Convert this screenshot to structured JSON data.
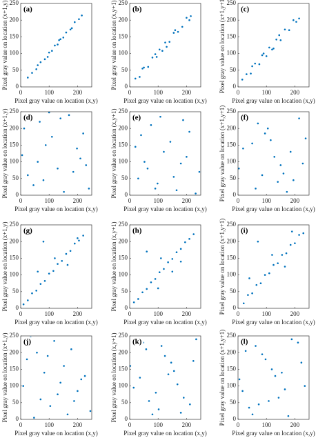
{
  "chart_data": [
    {
      "type": "scatter",
      "label": "(a)",
      "xlabel": "Pixel gray value on location (x,y)",
      "ylabel": "Pixel gray value on location (x+1,y)",
      "color": "#0072bd",
      "xlim": [
        0,
        250
      ],
      "ylim": [
        0,
        250
      ],
      "xticks": [
        0,
        100,
        200
      ],
      "yticks": [
        0,
        50,
        100,
        150,
        200,
        250
      ],
      "x": [
        25,
        40,
        55,
        70,
        85,
        100,
        110,
        120,
        130,
        140,
        150,
        160,
        175,
        190,
        205,
        215,
        60,
        95,
        135,
        180
      ],
      "values": [
        28,
        42,
        53,
        74,
        83,
        103,
        108,
        124,
        127,
        143,
        148,
        163,
        172,
        194,
        203,
        214,
        65,
        90,
        140,
        176
      ]
    },
    {
      "type": "scatter",
      "label": "(b)",
      "xlabel": "Pixel gray value on location (x,y)",
      "ylabel": "Pixel gray value on location (x,y+1)",
      "color": "#0072bd",
      "xlim": [
        0,
        250
      ],
      "ylim": [
        0,
        250
      ],
      "xticks": [
        0,
        100,
        200
      ],
      "yticks": [
        0,
        50,
        100,
        150,
        200,
        250
      ],
      "x": [
        20,
        35,
        50,
        65,
        80,
        95,
        105,
        115,
        125,
        140,
        155,
        170,
        185,
        200,
        215,
        45,
        90,
        130,
        160,
        210
      ],
      "values": [
        25,
        30,
        58,
        60,
        88,
        90,
        112,
        108,
        133,
        135,
        162,
        165,
        180,
        207,
        212,
        55,
        98,
        120,
        170,
        200
      ]
    },
    {
      "type": "scatter",
      "label": "(c)",
      "xlabel": "Pixel gray value on location (x,y)",
      "ylabel": "Pixel gray value on location (x+1,y+1)",
      "color": "#0072bd",
      "xlim": [
        0,
        250
      ],
      "ylim": [
        0,
        250
      ],
      "xticks": [
        0,
        100,
        200
      ],
      "yticks": [
        0,
        50,
        100,
        150,
        200,
        250
      ],
      "x": [
        15,
        30,
        45,
        60,
        75,
        90,
        100,
        110,
        120,
        135,
        150,
        165,
        180,
        195,
        215,
        50,
        85,
        125,
        145,
        205
      ],
      "values": [
        22,
        38,
        40,
        70,
        68,
        100,
        92,
        118,
        112,
        142,
        140,
        172,
        170,
        200,
        205,
        62,
        95,
        115,
        155,
        195
      ]
    },
    {
      "type": "scatter",
      "label": "(d)",
      "xlabel": "Pixel gray value on location (x,y)",
      "ylabel": "Pixel gray value on location (x+1,y)",
      "color": "#0072bd",
      "xlim": [
        0,
        250
      ],
      "ylim": [
        0,
        250
      ],
      "xticks": [
        0,
        100,
        200
      ],
      "yticks": [
        0,
        50,
        100,
        150,
        200,
        250
      ],
      "x": [
        12,
        45,
        88,
        130,
        170,
        210,
        240,
        25,
        67,
        110,
        152,
        198,
        230,
        5,
        80,
        140,
        185,
        220,
        60,
        100
      ],
      "values": [
        200,
        30,
        150,
        80,
        240,
        110,
        20,
        60,
        220,
        175,
        10,
        140,
        90,
        120,
        45,
        230,
        70,
        185,
        100,
        248
      ]
    },
    {
      "type": "scatter",
      "label": "(e)",
      "xlabel": "Pixel gray value on location (x,y)",
      "ylabel": "Pixel gray value on location (x,y+1)",
      "color": "#0072bd",
      "xlim": [
        0,
        250
      ],
      "ylim": [
        0,
        250
      ],
      "xticks": [
        0,
        100,
        200
      ],
      "yticks": [
        0,
        50,
        100,
        150,
        200,
        250
      ],
      "x": [
        30,
        75,
        120,
        165,
        210,
        245,
        8,
        52,
        98,
        143,
        188,
        232,
        20,
        63,
        108,
        155,
        200,
        40,
        90,
        180
      ],
      "values": [
        50,
        210,
        130,
        15,
        190,
        70,
        240,
        100,
        35,
        160,
        225,
        5,
        145,
        80,
        235,
        55,
        115,
        180,
        20,
        95
      ]
    },
    {
      "type": "scatter",
      "label": "(f)",
      "xlabel": "Pixel gray value on location (x,y)",
      "ylabel": "Pixel gray value on location (x+1,y+1)",
      "color": "#0072bd",
      "xlim": [
        0,
        250
      ],
      "ylim": [
        0,
        250
      ],
      "xticks": [
        0,
        100,
        200
      ],
      "yticks": [
        0,
        50,
        100,
        150,
        200,
        250
      ],
      "x": [
        18,
        62,
        105,
        150,
        195,
        238,
        40,
        85,
        128,
        172,
        215,
        3,
        50,
        95,
        140,
        185,
        228,
        70,
        115,
        160
      ],
      "values": [
        140,
        20,
        200,
        90,
        45,
        170,
        235,
        60,
        115,
        10,
        230,
        80,
        155,
        185,
        40,
        130,
        95,
        215,
        165,
        65
      ]
    },
    {
      "type": "scatter",
      "label": "(g)",
      "xlabel": "Pixel gray value on location (x,y)",
      "ylabel": "Pixel gray value on location (x+1,y)",
      "color": "#0072bd",
      "xlim": [
        0,
        250
      ],
      "ylim": [
        0,
        250
      ],
      "xticks": [
        0,
        100,
        200
      ],
      "yticks": [
        0,
        50,
        100,
        150,
        200,
        250
      ],
      "x": [
        10,
        25,
        40,
        55,
        70,
        85,
        100,
        115,
        130,
        145,
        160,
        175,
        190,
        205,
        220,
        80,
        60,
        120,
        165,
        200
      ],
      "values": [
        12,
        24,
        45,
        53,
        73,
        82,
        104,
        112,
        133,
        142,
        163,
        172,
        194,
        203,
        218,
        200,
        110,
        150,
        130,
        210
      ]
    },
    {
      "type": "scatter",
      "label": "(h)",
      "xlabel": "Pixel gray value on location (x,y)",
      "ylabel": "Pixel gray value on location (x,y+1)",
      "color": "#0072bd",
      "xlim": [
        0,
        250
      ],
      "ylim": [
        0,
        250
      ],
      "xticks": [
        0,
        100,
        200
      ],
      "yticks": [
        0,
        50,
        100,
        150,
        200,
        250
      ],
      "x": [
        15,
        30,
        45,
        60,
        75,
        90,
        105,
        120,
        135,
        150,
        165,
        180,
        195,
        210,
        225,
        60,
        110,
        150,
        180,
        100
      ],
      "values": [
        18,
        28,
        48,
        58,
        78,
        88,
        108,
        118,
        138,
        148,
        168,
        178,
        198,
        208,
        222,
        170,
        150,
        110,
        140,
        60
      ]
    },
    {
      "type": "scatter",
      "label": "(i)",
      "xlabel": "Pixel gray value on location (x,y)",
      "ylabel": "Pixel gray value on location (x+1,y+1)",
      "color": "#0072bd",
      "xlim": [
        0,
        250
      ],
      "ylim": [
        0,
        250
      ],
      "xticks": [
        0,
        100,
        200
      ],
      "yticks": [
        0,
        50,
        100,
        150,
        200,
        250
      ],
      "x": [
        20,
        35,
        50,
        65,
        80,
        95,
        110,
        125,
        140,
        155,
        170,
        185,
        200,
        215,
        230,
        70,
        120,
        165,
        190,
        40
      ],
      "values": [
        15,
        40,
        45,
        70,
        75,
        100,
        105,
        130,
        135,
        160,
        165,
        190,
        195,
        220,
        225,
        200,
        160,
        125,
        230,
        90
      ]
    },
    {
      "type": "scatter",
      "label": "(j)",
      "xlabel": "Pixel gray value on location (x,y)",
      "ylabel": "Pixel gray value on location (x+1,y)",
      "color": "#0072bd",
      "xlim": [
        0,
        250
      ],
      "ylim": [
        0,
        250
      ],
      "xticks": [
        0,
        100,
        200
      ],
      "yticks": [
        0,
        50,
        100,
        150,
        200,
        250
      ],
      "x": [
        22,
        70,
        118,
        165,
        213,
        9,
        57,
        104,
        152,
        200,
        245,
        35,
        83,
        130,
        178,
        226,
        47,
        95,
        140,
        188
      ],
      "values": [
        180,
        60,
        235,
        15,
        120,
        100,
        200,
        40,
        160,
        85,
        25,
        245,
        140,
        75,
        210,
        130,
        5,
        190,
        110,
        55
      ]
    },
    {
      "type": "scatter",
      "label": "(k)",
      "xlabel": "Pixel gray value on location (x,y)",
      "ylabel": "Pixel gray value on location (x,y+1)",
      "color": "#0072bd",
      "xlim": [
        0,
        250
      ],
      "ylim": [
        0,
        250
      ],
      "xticks": [
        0,
        100,
        200
      ],
      "yticks": [
        0,
        50,
        100,
        150,
        200,
        250
      ],
      "x": [
        14,
        58,
        102,
        146,
        190,
        234,
        36,
        80,
        124,
        168,
        212,
        2,
        48,
        92,
        136,
        180,
        224,
        68,
        112,
        156
      ],
      "values": [
        95,
        210,
        30,
        170,
        65,
        240,
        125,
        15,
        190,
        105,
        45,
        160,
        230,
        80,
        135,
        20,
        175,
        55,
        220,
        145
      ]
    },
    {
      "type": "scatter",
      "label": "(l)",
      "xlabel": "Pixel gray value on location (x,y)",
      "ylabel": "Pixel gray value on location (x+1,y+1)",
      "color": "#0072bd",
      "xlim": [
        0,
        250
      ],
      "ylim": [
        0,
        250
      ],
      "xticks": [
        0,
        100,
        200
      ],
      "yticks": [
        0,
        50,
        100,
        150,
        200,
        250
      ],
      "x": [
        27,
        73,
        119,
        165,
        211,
        5,
        51,
        97,
        143,
        189,
        235,
        39,
        85,
        131,
        177,
        223,
        16,
        62,
        108,
        154
      ],
      "values": [
        205,
        45,
        150,
        90,
        230,
        120,
        15,
        180,
        65,
        240,
        100,
        35,
        195,
        130,
        10,
        170,
        85,
        220,
        55,
        140
      ]
    }
  ]
}
